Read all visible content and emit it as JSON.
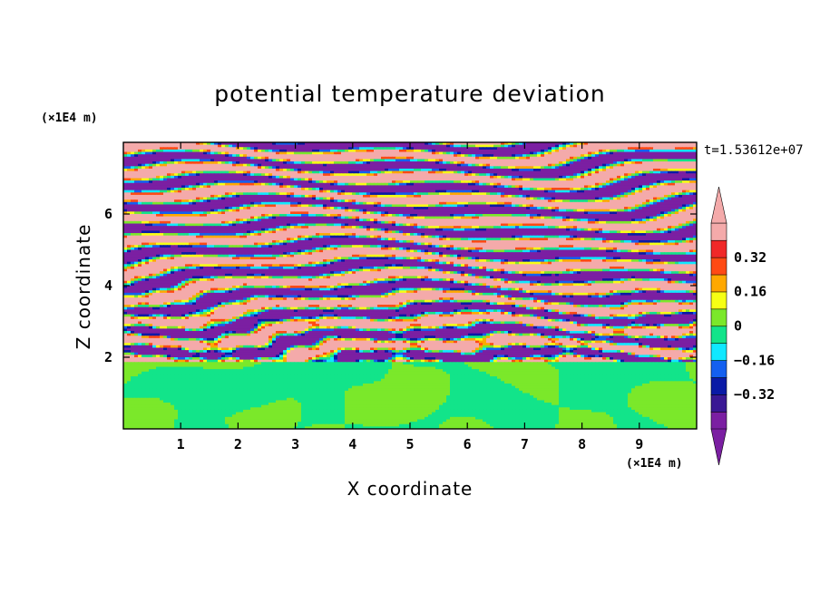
{
  "chart_data": {
    "type": "heatmap",
    "title": "potential temperature deviation",
    "xlabel": "X coordinate",
    "ylabel": "Z coordinate",
    "x_unit": "(×1E4 m)",
    "y_unit": "(×1E4 m)",
    "time_label": "t=1.53612e+07",
    "xlim": [
      0,
      10
    ],
    "ylim": [
      0,
      8
    ],
    "x_ticks": [
      1,
      2,
      3,
      4,
      5,
      6,
      7,
      8,
      9
    ],
    "y_ticks": [
      2,
      4,
      6
    ],
    "colorbar": {
      "levels": [
        -0.48,
        -0.4,
        -0.32,
        -0.24,
        -0.16,
        -0.08,
        0,
        0.08,
        0.16,
        0.24,
        0.32,
        0.4,
        0.48
      ],
      "labels": [
        "0.32",
        "0.16",
        "0",
        "−0.16",
        "−0.32"
      ],
      "label_values": [
        0.32,
        0.16,
        0,
        -0.16,
        -0.32
      ],
      "colors": [
        "#7b1fa2",
        "#3a1894",
        "#0a1aa6",
        "#1460f0",
        "#10e8ff",
        "#12e48a",
        "#7be82a",
        "#f6ff14",
        "#ffa800",
        "#ff4a14",
        "#f02828",
        "#f4aaaa"
      ],
      "extend": "both"
    },
    "description_regions": {
      "lower_layer_z": [
        0,
        1.9
      ],
      "stratified_layer_z": [
        1.9,
        8
      ]
    }
  }
}
